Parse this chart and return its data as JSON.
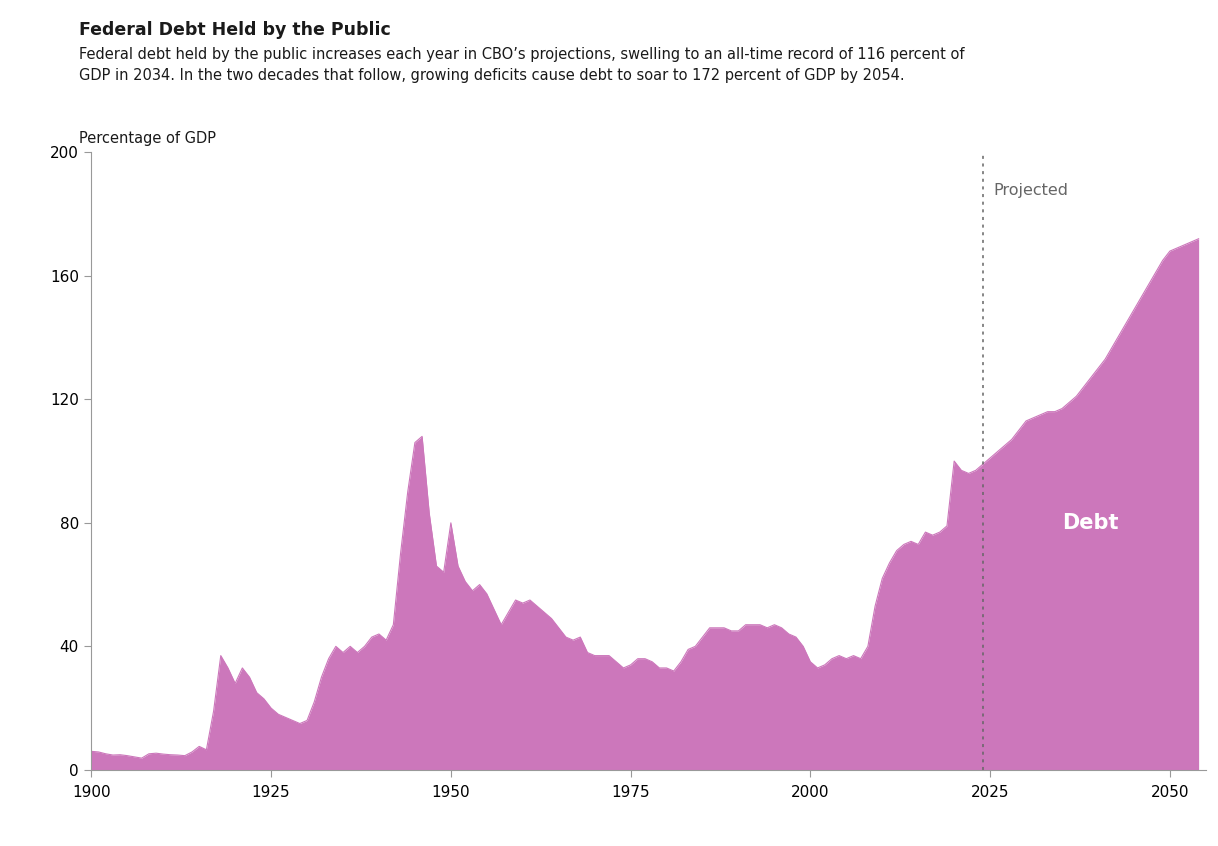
{
  "title": "Federal Debt Held by the Public",
  "subtitle": "Federal debt held by the public increases each year in CBO’s projections, swelling to an all-time record of 116 percent of\nGDP in 2034. In the two decades that follow, growing deficits cause debt to soar to 172 percent of GDP by 2054.",
  "ylabel": "Percentage of GDP",
  "fill_color": "#CC77BB",
  "fill_alpha": 1.0,
  "projection_line_year": 2024,
  "projection_label": "Projected",
  "debt_label": "Debt",
  "xlim": [
    1900,
    2055
  ],
  "ylim": [
    0,
    200
  ],
  "yticks": [
    0,
    40,
    80,
    120,
    160,
    200
  ],
  "xticks": [
    1900,
    1925,
    1950,
    1975,
    2000,
    2025,
    2050
  ],
  "years": [
    1900,
    1901,
    1902,
    1903,
    1904,
    1905,
    1906,
    1907,
    1908,
    1909,
    1910,
    1911,
    1912,
    1913,
    1914,
    1915,
    1916,
    1917,
    1918,
    1919,
    1920,
    1921,
    1922,
    1923,
    1924,
    1925,
    1926,
    1927,
    1928,
    1929,
    1930,
    1931,
    1932,
    1933,
    1934,
    1935,
    1936,
    1937,
    1938,
    1939,
    1940,
    1941,
    1942,
    1943,
    1944,
    1945,
    1946,
    1947,
    1948,
    1949,
    1950,
    1951,
    1952,
    1953,
    1954,
    1955,
    1956,
    1957,
    1958,
    1959,
    1960,
    1961,
    1962,
    1963,
    1964,
    1965,
    1966,
    1967,
    1968,
    1969,
    1970,
    1971,
    1972,
    1973,
    1974,
    1975,
    1976,
    1977,
    1978,
    1979,
    1980,
    1981,
    1982,
    1983,
    1984,
    1985,
    1986,
    1987,
    1988,
    1989,
    1990,
    1991,
    1992,
    1993,
    1994,
    1995,
    1996,
    1997,
    1998,
    1999,
    2000,
    2001,
    2002,
    2003,
    2004,
    2005,
    2006,
    2007,
    2008,
    2009,
    2010,
    2011,
    2012,
    2013,
    2014,
    2015,
    2016,
    2017,
    2018,
    2019,
    2020,
    2021,
    2022,
    2023,
    2024,
    2025,
    2026,
    2027,
    2028,
    2029,
    2030,
    2031,
    2032,
    2033,
    2034,
    2035,
    2036,
    2037,
    2038,
    2039,
    2040,
    2041,
    2042,
    2043,
    2044,
    2045,
    2046,
    2047,
    2048,
    2049,
    2050,
    2051,
    2052,
    2053,
    2054
  ],
  "values": [
    6.0,
    5.8,
    5.2,
    4.8,
    4.9,
    4.6,
    4.2,
    3.8,
    5.2,
    5.4,
    5.1,
    4.9,
    4.8,
    4.6,
    5.8,
    7.6,
    6.5,
    19.0,
    37.0,
    33.0,
    28.0,
    33.0,
    30.0,
    25.0,
    23.0,
    20.0,
    18.0,
    17.0,
    16.0,
    15.0,
    16.0,
    22.0,
    30.0,
    36.0,
    40.0,
    38.0,
    40.0,
    38.0,
    40.0,
    43.0,
    44.0,
    42.0,
    47.0,
    70.0,
    90.0,
    106.0,
    108.0,
    83.0,
    66.0,
    64.0,
    80.0,
    66.0,
    61.0,
    58.0,
    60.0,
    57.0,
    52.0,
    47.0,
    51.0,
    55.0,
    54.0,
    55.0,
    53.0,
    51.0,
    49.0,
    46.0,
    43.0,
    42.0,
    43.0,
    38.0,
    37.0,
    37.0,
    37.0,
    35.0,
    33.0,
    34.0,
    36.0,
    36.0,
    35.0,
    33.0,
    33.0,
    32.0,
    35.0,
    39.0,
    40.0,
    43.0,
    46.0,
    46.0,
    46.0,
    45.0,
    45.0,
    47.0,
    47.0,
    47.0,
    46.0,
    47.0,
    46.0,
    44.0,
    43.0,
    40.0,
    35.0,
    33.0,
    34.0,
    36.0,
    37.0,
    36.0,
    37.0,
    36.0,
    40.0,
    53.0,
    62.0,
    67.0,
    71.0,
    73.0,
    74.0,
    73.0,
    77.0,
    76.0,
    77.0,
    79.0,
    100.0,
    97.0,
    96.0,
    97.0,
    99.0,
    101.0,
    103.0,
    105.0,
    107.0,
    110.0,
    113.0,
    114.0,
    115.0,
    116.0,
    116.0,
    117.0,
    119.0,
    121.0,
    124.0,
    127.0,
    130.0,
    133.0,
    137.0,
    141.0,
    145.0,
    149.0,
    153.0,
    157.0,
    161.0,
    165.0,
    168.0,
    169.0,
    170.0,
    171.0,
    172.0
  ]
}
